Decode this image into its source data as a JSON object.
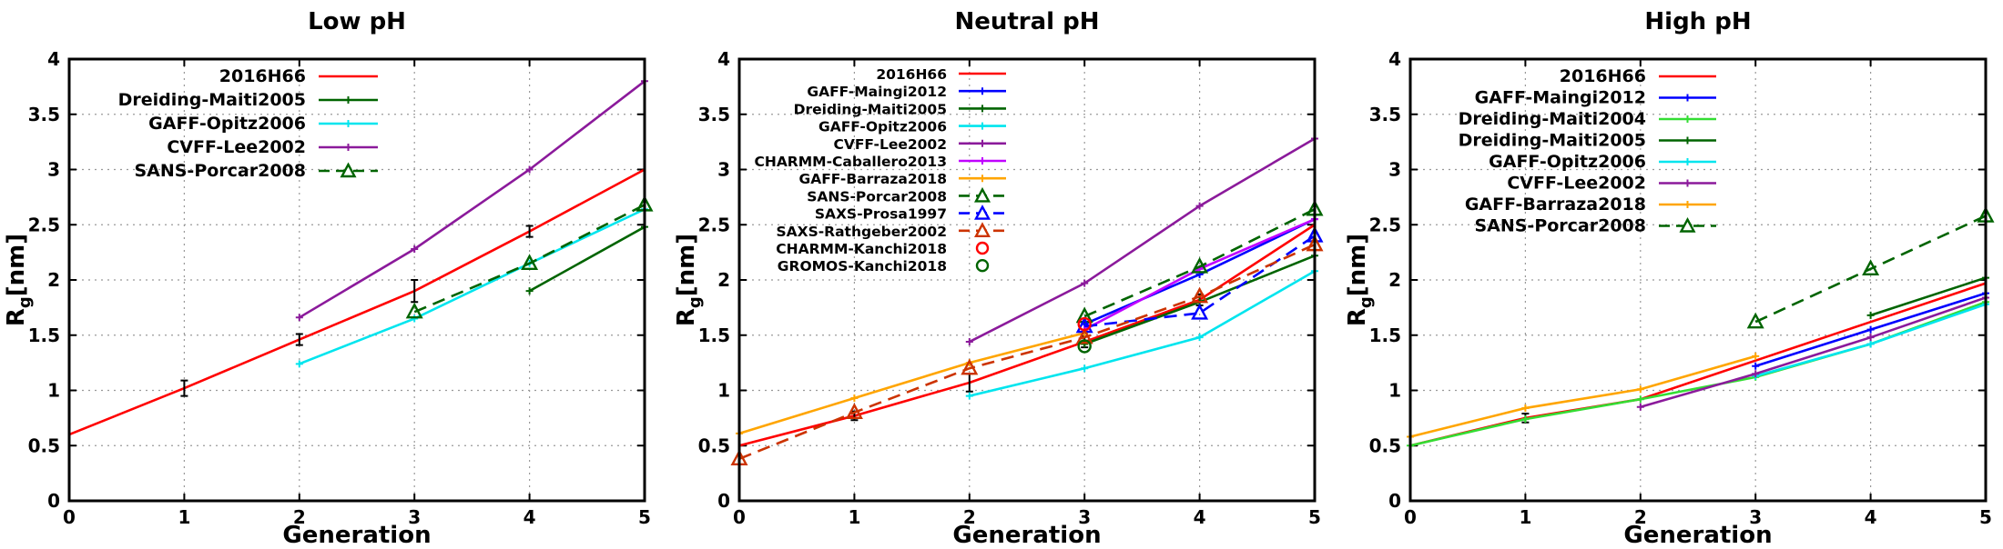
{
  "chart_data": [
    {
      "type": "line",
      "title": "Low pH",
      "xlabel": "Generation",
      "ylabel": "R",
      "ylabel_sub": "g",
      "ylabel_unit": "[nm]",
      "xlim": [
        0,
        5
      ],
      "ylim": [
        0,
        4
      ],
      "xticks": [
        "0",
        "1",
        "2",
        "3",
        "4",
        "5"
      ],
      "yticks": [
        "0",
        "0.5",
        "1",
        "1.5",
        "2",
        "2.5",
        "3",
        "3.5",
        "4"
      ],
      "grid": true,
      "legend_position": "top-left",
      "series": [
        {
          "name": "2016H66",
          "color": "#ff0000",
          "style": "solid",
          "marker": "errorbar",
          "x": [
            0,
            1,
            2,
            3,
            4,
            5
          ],
          "y": [
            0.6,
            1.02,
            1.46,
            1.9,
            2.44,
            3.0
          ],
          "err": [
            0,
            0.07,
            0.05,
            0.1,
            0.05,
            0
          ]
        },
        {
          "name": "Dreiding-Maiti2005",
          "color": "#006400",
          "style": "solid",
          "marker": "plus",
          "x": [
            4,
            5
          ],
          "y": [
            1.9,
            2.48
          ]
        },
        {
          "name": "GAFF-Opitz2006",
          "color": "#00e5ee",
          "style": "solid",
          "marker": "plus",
          "x": [
            2,
            3,
            4,
            5
          ],
          "y": [
            1.24,
            1.65,
            2.15,
            2.64
          ]
        },
        {
          "name": "CVFF-Lee2002",
          "color": "#8b1a9b",
          "style": "solid",
          "marker": "plus",
          "x": [
            2,
            3,
            4,
            5
          ],
          "y": [
            1.66,
            2.28,
            3.0,
            3.8
          ]
        },
        {
          "name": "SANS-Porcar2008",
          "color": "#006400",
          "style": "dashed",
          "marker": "triangle",
          "x": [
            3,
            4,
            5
          ],
          "y": [
            1.71,
            2.15,
            2.68
          ]
        }
      ]
    },
    {
      "type": "line",
      "title": "Neutral pH",
      "xlabel": "Generation",
      "ylabel": "R",
      "ylabel_sub": "g",
      "ylabel_unit": "[nm]",
      "xlim": [
        0,
        5
      ],
      "ylim": [
        0,
        4
      ],
      "xticks": [
        "0",
        "1",
        "2",
        "3",
        "4",
        "5"
      ],
      "yticks": [
        "0",
        "0.5",
        "1",
        "1.5",
        "2",
        "2.5",
        "3",
        "3.5",
        "4"
      ],
      "grid": true,
      "legend_position": "top-left",
      "series": [
        {
          "name": "2016H66",
          "color": "#ff0000",
          "style": "solid",
          "marker": "errorbar",
          "x": [
            0,
            1,
            2,
            3,
            4,
            5
          ],
          "y": [
            0.5,
            0.77,
            1.07,
            1.44,
            1.82,
            2.5
          ],
          "err": [
            0,
            0.04,
            0.08,
            0.05,
            0.05,
            0
          ]
        },
        {
          "name": "GAFF-Maingi2012",
          "color": "#0000ff",
          "style": "solid",
          "marker": "plus",
          "x": [
            3,
            4,
            5
          ],
          "y": [
            1.6,
            2.05,
            2.55
          ]
        },
        {
          "name": "Dreiding-Maiti2005",
          "color": "#006400",
          "style": "solid",
          "marker": "plus",
          "x": [
            3,
            4,
            5
          ],
          "y": [
            1.42,
            1.8,
            2.22
          ]
        },
        {
          "name": "GAFF-Opitz2006",
          "color": "#00e5ee",
          "style": "solid",
          "marker": "plus",
          "x": [
            2,
            3,
            4,
            5
          ],
          "y": [
            0.95,
            1.2,
            1.48,
            2.08
          ]
        },
        {
          "name": "CVFF-Lee2002",
          "color": "#8b1a9b",
          "style": "solid",
          "marker": "plus",
          "x": [
            2,
            3,
            4,
            5
          ],
          "y": [
            1.44,
            1.97,
            2.67,
            3.28
          ]
        },
        {
          "name": "CHARMM-Caballero2013",
          "color": "#c000ff",
          "style": "solid",
          "marker": "plus",
          "x": [
            3,
            4,
            5
          ],
          "y": [
            1.55,
            2.1,
            2.55
          ]
        },
        {
          "name": "GAFF-Barraza2018",
          "color": "#ffa500",
          "style": "solid",
          "marker": "plus",
          "x": [
            0,
            1,
            2,
            3
          ],
          "y": [
            0.61,
            0.93,
            1.25,
            1.52
          ]
        },
        {
          "name": "SANS-Porcar2008",
          "color": "#006400",
          "style": "dashed",
          "marker": "triangle",
          "x": [
            3,
            4,
            5
          ],
          "y": [
            1.67,
            2.12,
            2.64
          ]
        },
        {
          "name": "SAXS-Prosa1997",
          "color": "#0000ff",
          "style": "dashed",
          "marker": "triangle",
          "x": [
            3,
            4,
            5
          ],
          "y": [
            1.58,
            1.7,
            2.4
          ]
        },
        {
          "name": "SAXS-Rathgeber2002",
          "color": "#cc3300",
          "style": "dashed",
          "marker": "triangle",
          "x": [
            0,
            1,
            2,
            3,
            4,
            5
          ],
          "y": [
            0.38,
            0.8,
            1.2,
            1.48,
            1.85,
            2.32
          ]
        },
        {
          "name": "CHARMM-Kanchi2018",
          "color": "#ff0000",
          "style": "none",
          "marker": "circle",
          "x": [
            3
          ],
          "y": [
            1.6
          ]
        },
        {
          "name": "GROMOS-Kanchi2018",
          "color": "#006400",
          "style": "none",
          "marker": "circle",
          "x": [
            3
          ],
          "y": [
            1.4
          ]
        }
      ]
    },
    {
      "type": "line",
      "title": "High pH",
      "xlabel": "Generation",
      "ylabel": "R",
      "ylabel_sub": "g",
      "ylabel_unit": "[nm]",
      "xlim": [
        0,
        5
      ],
      "ylim": [
        0,
        4
      ],
      "xticks": [
        "0",
        "1",
        "2",
        "3",
        "4",
        "5"
      ],
      "yticks": [
        "0",
        "0.5",
        "1",
        "1.5",
        "2",
        "2.5",
        "3",
        "3.5",
        "4"
      ],
      "grid": true,
      "legend_position": "top-left",
      "series": [
        {
          "name": "2016H66",
          "color": "#ff0000",
          "style": "solid",
          "marker": "errorbar",
          "x": [
            0,
            1,
            2,
            3,
            4,
            5
          ],
          "y": [
            0.5,
            0.75,
            0.92,
            1.27,
            1.62,
            1.97
          ],
          "err": [
            0,
            0.04,
            0,
            0,
            0,
            0
          ]
        },
        {
          "name": "GAFF-Maingi2012",
          "color": "#0000ff",
          "style": "solid",
          "marker": "plus",
          "x": [
            3,
            4,
            5
          ],
          "y": [
            1.22,
            1.55,
            1.88
          ]
        },
        {
          "name": "Dreiding-Maiti2004",
          "color": "#33dd33",
          "style": "solid",
          "marker": "plus",
          "x": [
            0,
            1,
            2,
            3,
            4,
            5
          ],
          "y": [
            0.5,
            0.74,
            0.92,
            1.12,
            1.42,
            1.8
          ]
        },
        {
          "name": "Dreiding-Maiti2005",
          "color": "#006400",
          "style": "solid",
          "marker": "plus",
          "x": [
            4,
            5
          ],
          "y": [
            1.68,
            2.02
          ]
        },
        {
          "name": "GAFF-Opitz2006",
          "color": "#00e5ee",
          "style": "solid",
          "marker": "plus",
          "x": [
            3,
            4,
            5
          ],
          "y": [
            1.13,
            1.42,
            1.78
          ]
        },
        {
          "name": "CVFF-Lee2002",
          "color": "#8b1a9b",
          "style": "solid",
          "marker": "plus",
          "x": [
            2,
            3,
            4,
            5
          ],
          "y": [
            0.85,
            1.15,
            1.48,
            1.84
          ]
        },
        {
          "name": "GAFF-Barraza2018",
          "color": "#ffa500",
          "style": "solid",
          "marker": "plus",
          "x": [
            0,
            1,
            2,
            3
          ],
          "y": [
            0.58,
            0.84,
            1.01,
            1.31
          ]
        },
        {
          "name": "SANS-Porcar2008",
          "color": "#006400",
          "style": "dashed",
          "marker": "triangle",
          "x": [
            3,
            4,
            5
          ],
          "y": [
            1.62,
            2.1,
            2.58
          ]
        }
      ]
    }
  ]
}
